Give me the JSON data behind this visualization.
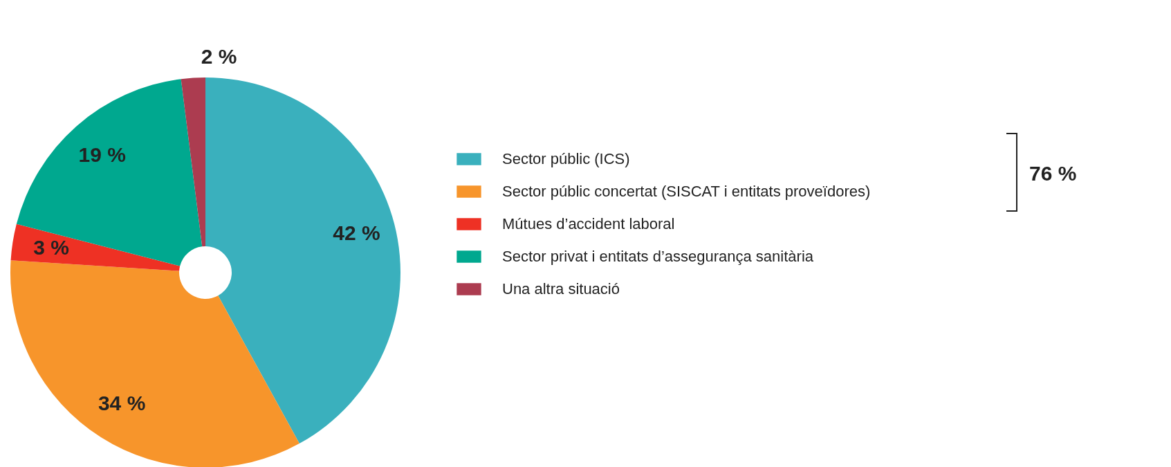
{
  "chart_data": {
    "type": "donut",
    "categories": [
      "Sector públic (ICS)",
      "Sector públic concertat (SISCAT i entitats proveïdores)",
      "Mútues d’accident laboral",
      "Sector privat i entitats d’assegurança sanitària",
      "Una altra situació"
    ],
    "values": [
      42,
      34,
      3,
      19,
      2
    ],
    "colors": [
      "#3ab0bd",
      "#f7952b",
      "#ee3124",
      "#00a88f",
      "#ac3c50"
    ],
    "value_labels": [
      "42 %",
      "34 %",
      "3 %",
      "19 %",
      "2 %"
    ],
    "legend": "right",
    "annotations": [
      "76 %"
    ]
  }
}
